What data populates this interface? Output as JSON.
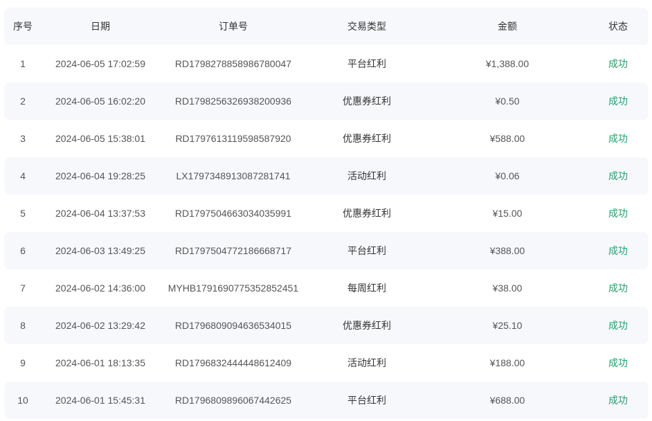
{
  "table": {
    "headers": [
      "序号",
      "日期",
      "订单号",
      "交易类型",
      "金额",
      "状态"
    ],
    "rows": [
      {
        "index": "1",
        "date": "2024-06-05 17:02:59",
        "order": "RD1798278858986780047",
        "type": "平台红利",
        "amount": "¥1,388.00",
        "status": "成功"
      },
      {
        "index": "2",
        "date": "2024-06-05 16:02:20",
        "order": "RD1798256326938200936",
        "type": "优惠券红利",
        "amount": "¥0.50",
        "status": "成功"
      },
      {
        "index": "3",
        "date": "2024-06-05 15:38:01",
        "order": "RD1797613119598587920",
        "type": "优惠券红利",
        "amount": "¥588.00",
        "status": "成功"
      },
      {
        "index": "4",
        "date": "2024-06-04 19:28:25",
        "order": "LX1797348913087281741",
        "type": "活动红利",
        "amount": "¥0.06",
        "status": "成功"
      },
      {
        "index": "5",
        "date": "2024-06-04 13:37:53",
        "order": "RD1797504663034035991",
        "type": "优惠券红利",
        "amount": "¥15.00",
        "status": "成功"
      },
      {
        "index": "6",
        "date": "2024-06-03 13:49:25",
        "order": "RD1797504772186668717",
        "type": "平台红利",
        "amount": "¥388.00",
        "status": "成功"
      },
      {
        "index": "7",
        "date": "2024-06-02 14:36:00",
        "order": "MYHB1791690775352852451",
        "type": "每周红利",
        "amount": "¥38.00",
        "status": "成功"
      },
      {
        "index": "8",
        "date": "2024-06-02 13:29:42",
        "order": "RD1796809094636534015",
        "type": "优惠券红利",
        "amount": "¥25.10",
        "status": "成功"
      },
      {
        "index": "9",
        "date": "2024-06-01 18:13:35",
        "order": "RD1796832444448612409",
        "type": "活动红利",
        "amount": "¥188.00",
        "status": "成功"
      },
      {
        "index": "10",
        "date": "2024-06-01 15:45:31",
        "order": "RD1796809896067442625",
        "type": "平台红利",
        "amount": "¥688.00",
        "status": "成功"
      }
    ]
  },
  "colors": {
    "success": "#22a06b",
    "stripe": "#f7f8fc"
  }
}
